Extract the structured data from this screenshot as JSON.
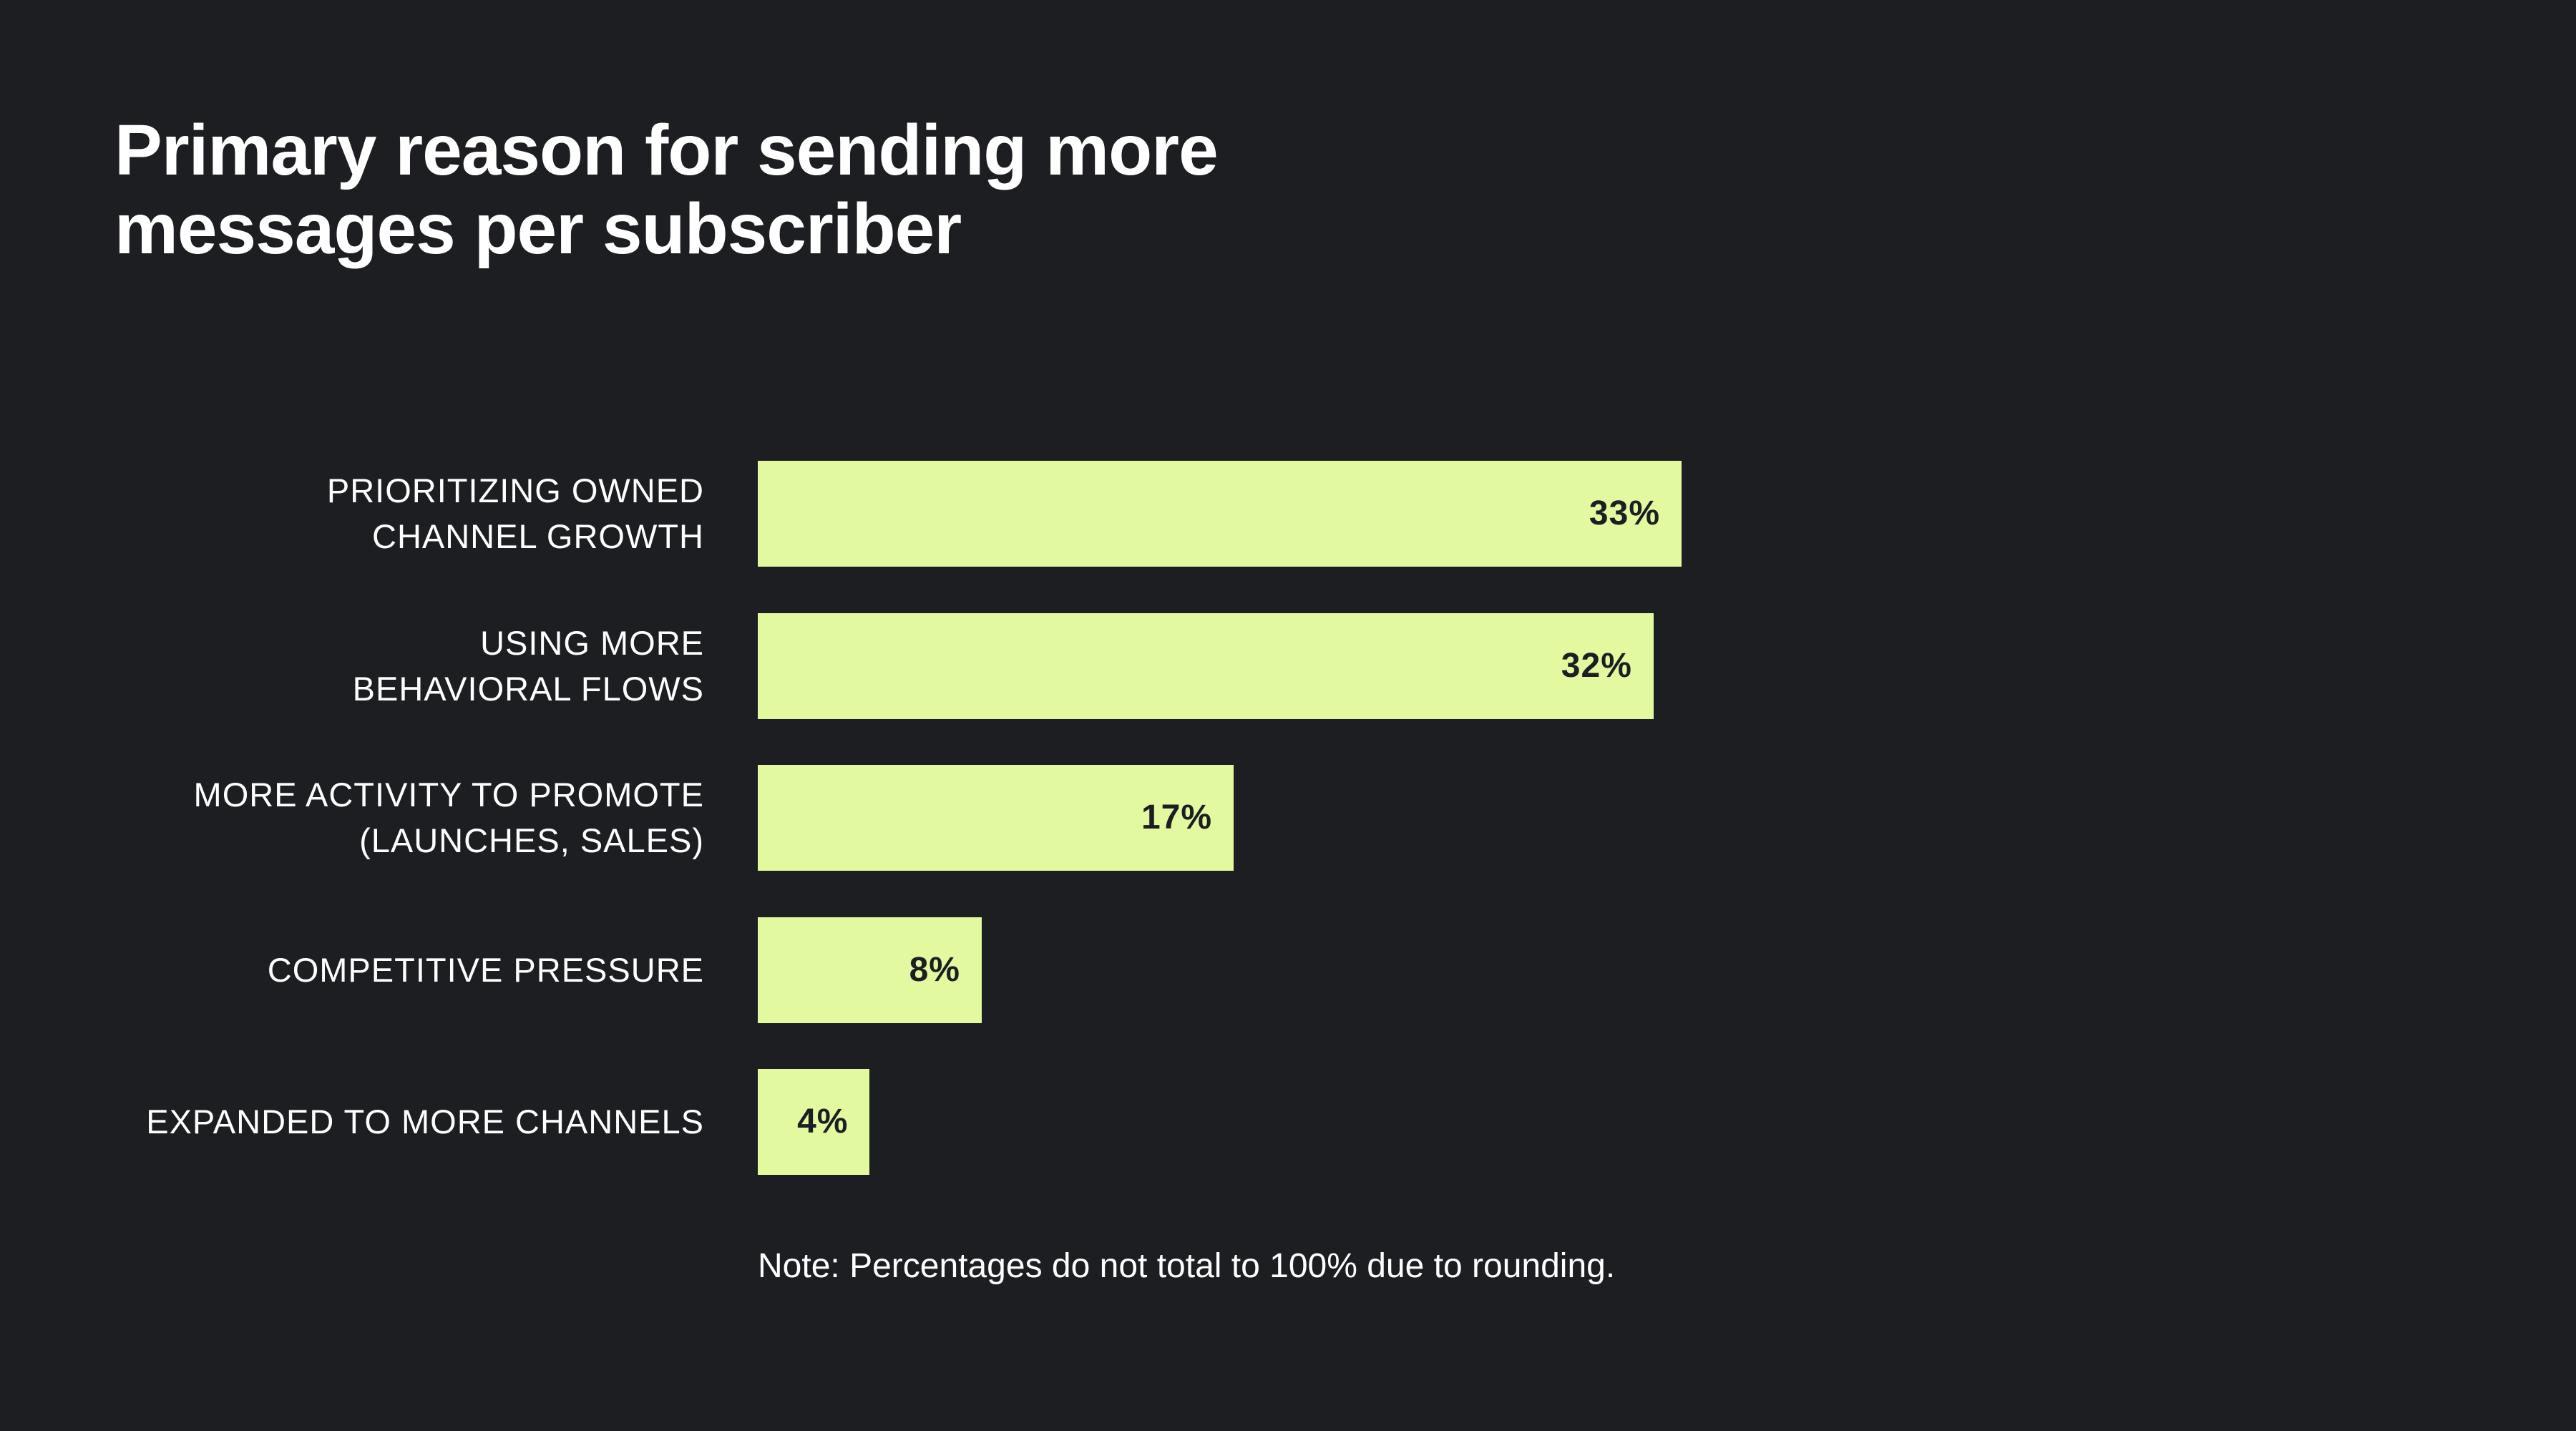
{
  "title_lines": [
    "Primary reason for sending more",
    "messages per subscriber"
  ],
  "note": "Note: Percentages do not total to 100% due to rounding.",
  "colors": {
    "background": "#1c1e22",
    "bar": "#e2f99f",
    "text": "#ffffff",
    "value_text": "#1c1e22"
  },
  "chart_data": {
    "type": "bar",
    "orientation": "horizontal",
    "title": "Primary reason for sending more messages per subscriber",
    "categories": [
      [
        "PRIORITIZING OWNED",
        "CHANNEL GROWTH"
      ],
      [
        "USING MORE",
        "BEHAVIORAL FLOWS"
      ],
      [
        "MORE ACTIVITY TO PROMOTE",
        "(LAUNCHES, SALES)"
      ],
      [
        "COMPETITIVE PRESSURE"
      ],
      [
        "EXPANDED TO MORE CHANNELS"
      ]
    ],
    "values": [
      33,
      32,
      17,
      8,
      4
    ],
    "value_labels": [
      "33%",
      "32%",
      "17%",
      "8%",
      "4%"
    ],
    "unit": "%",
    "xlim": [
      0,
      33
    ],
    "grid": false,
    "legend": "none"
  }
}
